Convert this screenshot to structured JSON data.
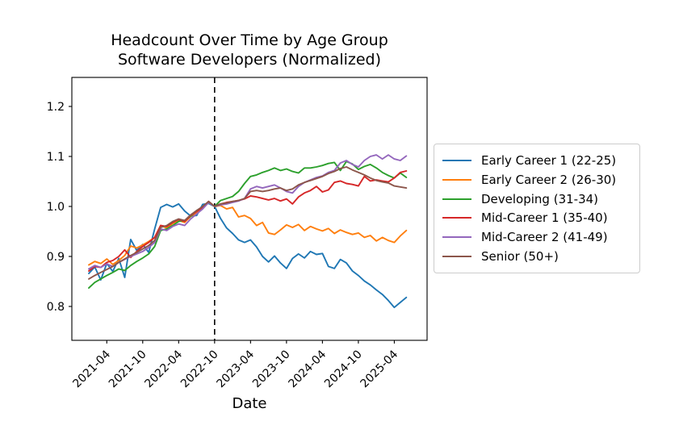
{
  "title": {
    "line1": "Headcount Over Time by Age Group",
    "line2": "Software Developers (Normalized)"
  },
  "chart_data": {
    "type": "line",
    "title": "Headcount Over Time by Age Group Software Developers (Normalized)",
    "xlabel": "Date",
    "ylabel": "",
    "grid": false,
    "legend_position": "right",
    "ylim": [
      0.73,
      1.26
    ],
    "y_ticks": [
      0.8,
      0.9,
      1.0,
      1.1,
      1.2
    ],
    "x_tick_labels": [
      "2021-04",
      "2021-10",
      "2022-04",
      "2022-10",
      "2023-04",
      "2023-10",
      "2024-04",
      "2024-10",
      "2025-04"
    ],
    "vline": {
      "x_label": "2022-10",
      "style": "dashed",
      "color": "#000000"
    },
    "x": [
      "2021-01",
      "2021-02",
      "2021-03",
      "2021-04",
      "2021-05",
      "2021-06",
      "2021-07",
      "2021-08",
      "2021-09",
      "2021-10",
      "2021-11",
      "2021-12",
      "2022-01",
      "2022-02",
      "2022-03",
      "2022-04",
      "2022-05",
      "2022-06",
      "2022-07",
      "2022-08",
      "2022-09",
      "2022-10",
      "2022-11",
      "2022-12",
      "2023-01",
      "2023-02",
      "2023-03",
      "2023-04",
      "2023-05",
      "2023-06",
      "2023-07",
      "2023-08",
      "2023-09",
      "2023-10",
      "2023-11",
      "2023-12",
      "2024-01",
      "2024-02",
      "2024-03",
      "2024-04",
      "2024-05",
      "2024-06",
      "2024-07",
      "2024-08",
      "2024-09",
      "2024-10",
      "2024-11",
      "2024-12",
      "2025-01",
      "2025-02",
      "2025-03",
      "2025-04",
      "2025-05",
      "2025-06"
    ],
    "series": [
      {
        "name": "Early Career 1 (22-25)",
        "color": "#1f77b4",
        "values": [
          0.866,
          0.879,
          0.853,
          0.886,
          0.87,
          0.896,
          0.858,
          0.934,
          0.912,
          0.924,
          0.908,
          0.955,
          0.998,
          1.004,
          0.999,
          1.005,
          0.991,
          0.981,
          0.982,
          1.004,
          1.006,
          1.0,
          0.976,
          0.957,
          0.946,
          0.933,
          0.928,
          0.933,
          0.919,
          0.9,
          0.889,
          0.901,
          0.887,
          0.876,
          0.896,
          0.905,
          0.897,
          0.91,
          0.904,
          0.906,
          0.88,
          0.876,
          0.894,
          0.887,
          0.871,
          0.862,
          0.851,
          0.843,
          0.833,
          0.824,
          0.812,
          0.798,
          0.808,
          0.818
        ]
      },
      {
        "name": "Early Career 2 (26-30)",
        "color": "#ff7f0e",
        "values": [
          0.883,
          0.89,
          0.886,
          0.895,
          0.884,
          0.892,
          0.902,
          0.921,
          0.917,
          0.923,
          0.93,
          0.938,
          0.962,
          0.957,
          0.966,
          0.972,
          0.968,
          0.98,
          0.988,
          0.996,
          1.008,
          1.0,
          1.002,
          0.995,
          0.998,
          0.979,
          0.982,
          0.976,
          0.962,
          0.968,
          0.947,
          0.944,
          0.953,
          0.963,
          0.958,
          0.964,
          0.952,
          0.96,
          0.955,
          0.951,
          0.956,
          0.946,
          0.953,
          0.948,
          0.944,
          0.947,
          0.938,
          0.942,
          0.931,
          0.938,
          0.932,
          0.928,
          0.941,
          0.952
        ]
      },
      {
        "name": "Developing (31-34)",
        "color": "#2ca02c",
        "values": [
          0.837,
          0.848,
          0.855,
          0.862,
          0.868,
          0.875,
          0.872,
          0.882,
          0.89,
          0.897,
          0.905,
          0.92,
          0.952,
          0.955,
          0.962,
          0.97,
          0.972,
          0.98,
          0.992,
          0.998,
          1.01,
          1.0,
          1.012,
          1.016,
          1.02,
          1.03,
          1.046,
          1.06,
          1.063,
          1.068,
          1.072,
          1.077,
          1.072,
          1.075,
          1.07,
          1.067,
          1.077,
          1.077,
          1.079,
          1.082,
          1.086,
          1.088,
          1.072,
          1.09,
          1.085,
          1.074,
          1.08,
          1.084,
          1.077,
          1.068,
          1.062,
          1.057,
          1.067,
          1.058
        ]
      },
      {
        "name": "Mid-Career 1 (35-40)",
        "color": "#d62728",
        "values": [
          0.871,
          0.88,
          0.878,
          0.888,
          0.892,
          0.9,
          0.913,
          0.898,
          0.91,
          0.92,
          0.928,
          0.938,
          0.962,
          0.96,
          0.968,
          0.974,
          0.97,
          0.982,
          0.99,
          0.998,
          1.01,
          1.0,
          1.005,
          1.008,
          1.01,
          1.012,
          1.015,
          1.021,
          1.019,
          1.016,
          1.013,
          1.016,
          1.011,
          1.015,
          1.005,
          1.019,
          1.027,
          1.032,
          1.04,
          1.029,
          1.033,
          1.048,
          1.051,
          1.046,
          1.044,
          1.041,
          1.06,
          1.051,
          1.053,
          1.051,
          1.049,
          1.057,
          1.068,
          1.071
        ]
      },
      {
        "name": "Mid-Career 2 (41-49)",
        "color": "#9467bd",
        "values": [
          0.875,
          0.882,
          0.878,
          0.885,
          0.88,
          0.888,
          0.894,
          0.9,
          0.905,
          0.91,
          0.918,
          0.928,
          0.955,
          0.952,
          0.96,
          0.965,
          0.962,
          0.975,
          0.985,
          0.995,
          1.008,
          1.0,
          1.003,
          1.005,
          1.008,
          1.011,
          1.016,
          1.035,
          1.04,
          1.037,
          1.04,
          1.043,
          1.037,
          1.03,
          1.027,
          1.04,
          1.048,
          1.053,
          1.058,
          1.061,
          1.068,
          1.072,
          1.087,
          1.092,
          1.084,
          1.079,
          1.092,
          1.1,
          1.103,
          1.095,
          1.103,
          1.095,
          1.092,
          1.101
        ]
      },
      {
        "name": "Senior (50+)",
        "color": "#8c564b",
        "values": [
          0.855,
          0.862,
          0.868,
          0.874,
          0.88,
          0.888,
          0.895,
          0.902,
          0.908,
          0.915,
          0.922,
          0.932,
          0.958,
          0.962,
          0.97,
          0.975,
          0.972,
          0.983,
          0.992,
          1.0,
          1.01,
          1.0,
          1.005,
          1.007,
          1.01,
          1.012,
          1.016,
          1.03,
          1.032,
          1.03,
          1.032,
          1.035,
          1.037,
          1.032,
          1.035,
          1.043,
          1.048,
          1.052,
          1.056,
          1.06,
          1.066,
          1.07,
          1.076,
          1.079,
          1.073,
          1.068,
          1.063,
          1.057,
          1.052,
          1.049,
          1.047,
          1.041,
          1.039,
          1.037
        ]
      }
    ]
  }
}
